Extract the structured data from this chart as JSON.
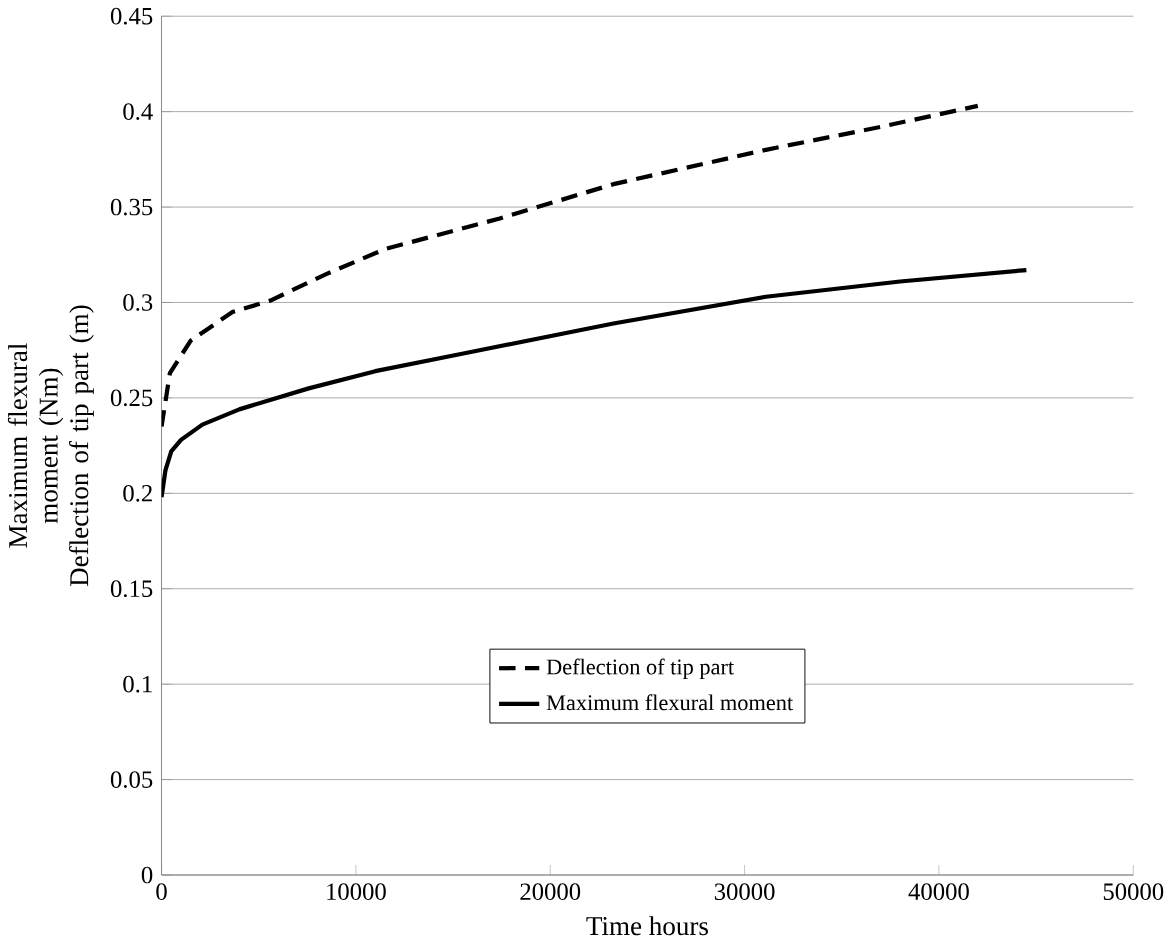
{
  "chart_data": {
    "type": "line",
    "xlabel": "Time   hours",
    "ylabel": "Maximum flexural moment  (Nm)\nDeflection of tip part   (m)",
    "xlim": [
      0,
      50000
    ],
    "ylim": [
      0,
      0.45
    ],
    "xticks": [
      0,
      10000,
      20000,
      30000,
      40000,
      50000
    ],
    "yticks": [
      0,
      0.05,
      0.1,
      0.15,
      0.2,
      0.25,
      0.3,
      0.35,
      0.4,
      0.45
    ],
    "grid": "y",
    "legend": "bottom",
    "marker": "none",
    "series": [
      {
        "name": "Deflection of tip part",
        "color": "#000000",
        "line_style": "dashed",
        "x": [
          0,
          430,
          1500,
          3650,
          5600,
          8500,
          11500,
          17400,
          23250,
          31100,
          37000,
          42000
        ],
        "values": [
          0.235,
          0.263,
          0.28,
          0.295,
          0.301,
          0.315,
          0.328,
          0.344,
          0.362,
          0.38,
          0.392,
          0.403
        ]
      },
      {
        "name": "Maximum flexural moment",
        "color": "#000000",
        "line_style": "solid",
        "x": [
          0,
          200,
          500,
          1000,
          2100,
          4000,
          7570,
          11000,
          15400,
          23250,
          31100,
          38000,
          44500
        ],
        "values": [
          0.198,
          0.212,
          0.222,
          0.228,
          0.236,
          0.244,
          0.255,
          0.264,
          0.273,
          0.289,
          0.303,
          0.311,
          0.317
        ]
      }
    ]
  }
}
